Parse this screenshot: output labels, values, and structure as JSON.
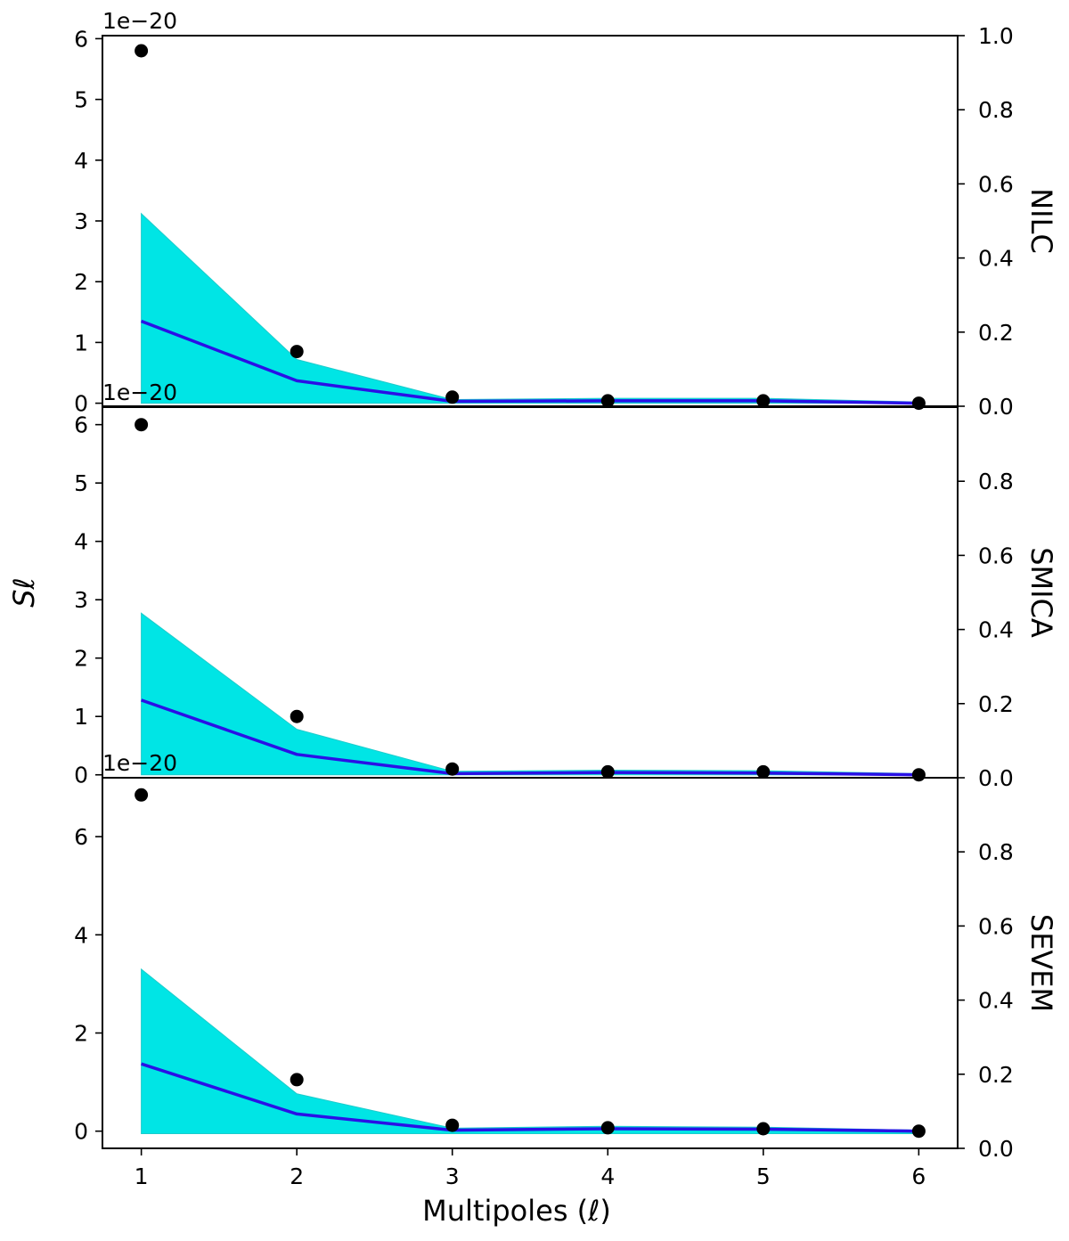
{
  "chart_data": {
    "type": "line",
    "xlabel": "Multipoles (ℓ)",
    "ylabel": "Sℓ",
    "x": [
      1,
      2,
      3,
      4,
      5,
      6
    ],
    "x_ticks": [
      "1",
      "2",
      "3",
      "4",
      "5",
      "6"
    ],
    "xlim": [
      0.75,
      6.25
    ],
    "colors": {
      "band": "#00e5e5",
      "mean": "#2a10e6",
      "points": "#000000"
    },
    "panels": [
      {
        "label": "NILC",
        "offset_text": "1e−20",
        "ylim": [
          -0.05,
          6.05
        ],
        "y_ticks": [
          0,
          1,
          2,
          3,
          4,
          5,
          6
        ],
        "right_ylim": [
          0.0,
          1.0
        ],
        "right_ticks": [
          "0.0",
          "0.2",
          "0.4",
          "0.6",
          "0.8",
          "1.0"
        ],
        "observed": [
          5.8,
          0.85,
          0.1,
          0.04,
          0.04,
          0.0
        ],
        "mean": [
          1.35,
          0.37,
          0.03,
          0.04,
          0.04,
          0.0
        ],
        "upper": [
          3.12,
          0.72,
          0.06,
          0.08,
          0.08,
          0.02
        ],
        "lower": [
          0.0,
          0.0,
          0.0,
          0.0,
          0.0,
          0.0
        ]
      },
      {
        "label": "SMICA",
        "offset_text": "1e−20",
        "ylim": [
          -0.05,
          6.3
        ],
        "y_ticks": [
          0,
          1,
          2,
          3,
          4,
          5,
          6
        ],
        "right_ylim": [
          0.0,
          1.0
        ],
        "right_ticks": [
          "0.0",
          "0.2",
          "0.4",
          "0.6",
          "0.8"
        ],
        "observed": [
          6.0,
          1.0,
          0.1,
          0.05,
          0.05,
          0.0
        ],
        "mean": [
          1.28,
          0.35,
          0.02,
          0.04,
          0.03,
          0.0
        ],
        "upper": [
          2.77,
          0.78,
          0.06,
          0.08,
          0.07,
          0.02
        ],
        "lower": [
          0.0,
          0.0,
          0.0,
          0.0,
          0.0,
          0.0
        ]
      },
      {
        "label": "SEVEM",
        "offset_text": "1e−20",
        "ylim": [
          -0.35,
          7.2
        ],
        "y_ticks": [
          0,
          2,
          4,
          6
        ],
        "right_ylim": [
          0.0,
          1.0
        ],
        "right_ticks": [
          "0.0",
          "0.2",
          "0.4",
          "0.6",
          "0.8"
        ],
        "observed": [
          6.85,
          1.05,
          0.12,
          0.07,
          0.05,
          0.0
        ],
        "mean": [
          1.37,
          0.35,
          0.02,
          0.05,
          0.04,
          0.0
        ],
        "upper": [
          3.3,
          0.76,
          0.06,
          0.1,
          0.08,
          0.02
        ],
        "lower": [
          -0.05,
          -0.05,
          -0.05,
          -0.05,
          -0.05,
          -0.05
        ]
      }
    ]
  }
}
